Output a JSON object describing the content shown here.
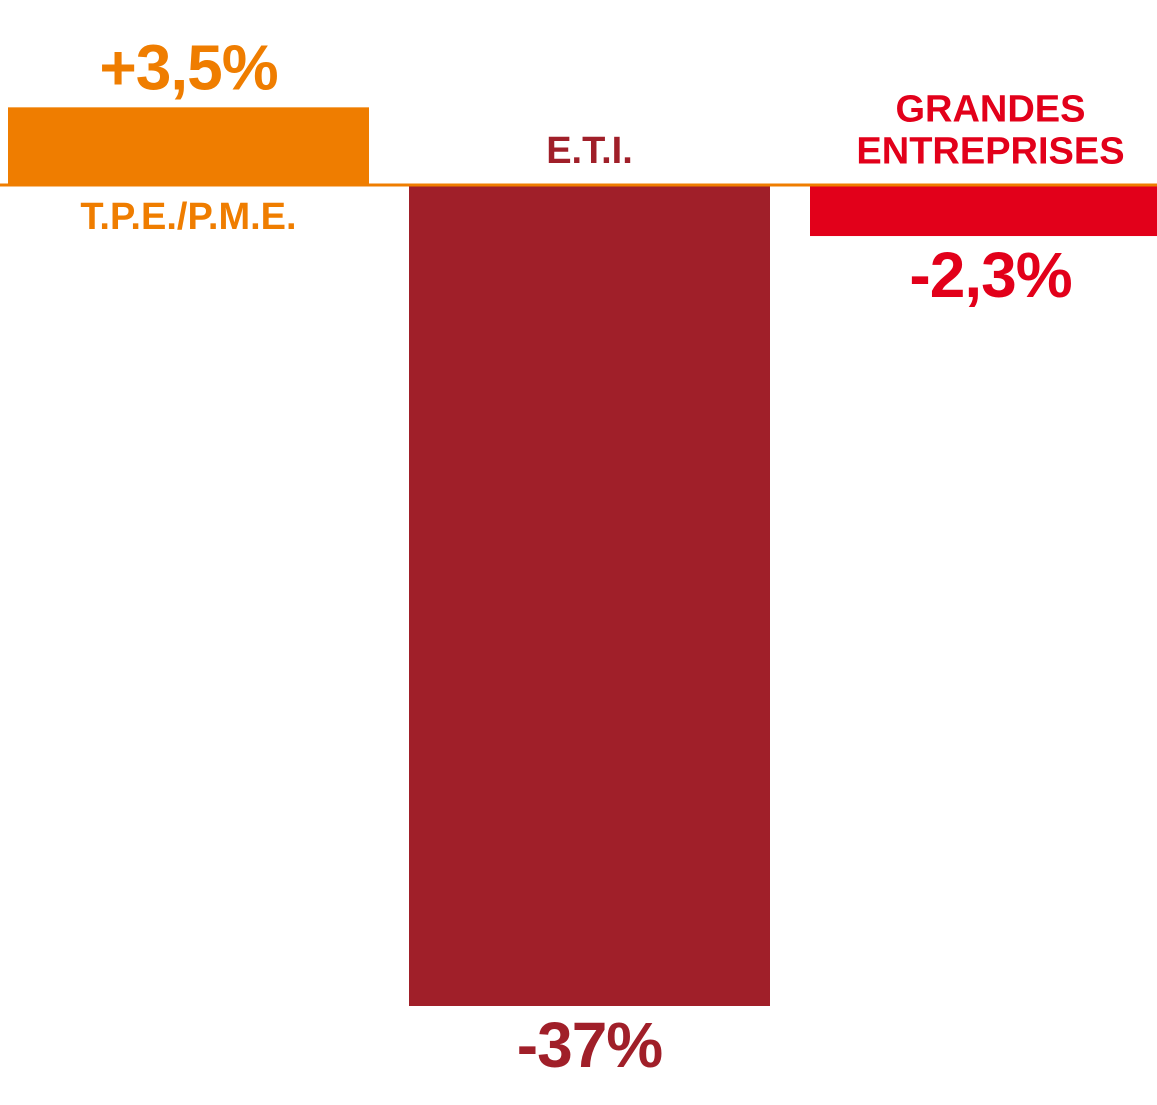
{
  "chart_data": {
    "type": "bar",
    "categories": [
      "T.P.E./P.M.E.",
      "E.T.I.",
      "GRANDES ENTREPRISES"
    ],
    "values": [
      3.5,
      -37,
      -2.3
    ],
    "value_labels": [
      "+3,5%",
      "-37%",
      "-2,3%"
    ],
    "colors": [
      "#ef7d00",
      "#a01f29",
      "#e2001a"
    ]
  }
}
